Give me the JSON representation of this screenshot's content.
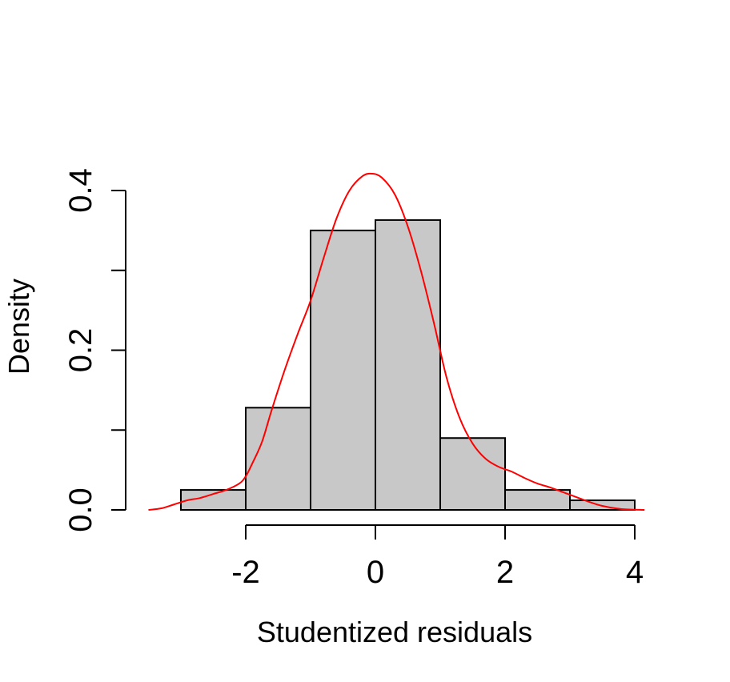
{
  "chart_data": {
    "type": "bar",
    "subtype": "histogram",
    "title": "",
    "xlabel": "Studentized residuals",
    "ylabel": "Density",
    "bins": [
      {
        "x0": -3,
        "x1": -2,
        "density": 0.025
      },
      {
        "x0": -2,
        "x1": -1,
        "density": 0.128
      },
      {
        "x0": -1,
        "x1": 0,
        "density": 0.35
      },
      {
        "x0": 0,
        "x1": 1,
        "density": 0.363
      },
      {
        "x0": 1,
        "x1": 2,
        "density": 0.09
      },
      {
        "x0": 2,
        "x1": 3,
        "density": 0.025
      },
      {
        "x0": 3,
        "x1": 4,
        "density": 0.012
      }
    ],
    "x_ticks": [
      {
        "value": -2,
        "label": "-2"
      },
      {
        "value": 0,
        "label": "0"
      },
      {
        "value": 2,
        "label": "2"
      },
      {
        "value": 4,
        "label": "4"
      }
    ],
    "y_ticks": [
      {
        "value": 0.0,
        "label": "0.0"
      },
      {
        "value": 0.1,
        "label": ""
      },
      {
        "value": 0.2,
        "label": "0.2"
      },
      {
        "value": 0.3,
        "label": ""
      },
      {
        "value": 0.4,
        "label": "0.4"
      }
    ],
    "xlim": [
      -2,
      4
    ],
    "ylim": [
      0,
      0.4
    ],
    "bar_fill": "#c8c8c8",
    "bar_stroke": "#000000",
    "density_curve": {
      "color": "#ff0000",
      "points": [
        [
          -3.5,
          0.0
        ],
        [
          -3.3,
          0.002
        ],
        [
          -3.1,
          0.007
        ],
        [
          -2.9,
          0.012
        ],
        [
          -2.7,
          0.015
        ],
        [
          -2.5,
          0.02
        ],
        [
          -2.3,
          0.025
        ],
        [
          -2.1,
          0.033
        ],
        [
          -2.0,
          0.042
        ],
        [
          -1.9,
          0.058
        ],
        [
          -1.75,
          0.085
        ],
        [
          -1.6,
          0.125
        ],
        [
          -1.4,
          0.175
        ],
        [
          -1.2,
          0.22
        ],
        [
          -1.0,
          0.262
        ],
        [
          -0.8,
          0.315
        ],
        [
          -0.6,
          0.365
        ],
        [
          -0.4,
          0.4
        ],
        [
          -0.2,
          0.418
        ],
        [
          -0.05,
          0.421
        ],
        [
          0.1,
          0.416
        ],
        [
          0.3,
          0.395
        ],
        [
          0.5,
          0.355
        ],
        [
          0.7,
          0.3
        ],
        [
          0.9,
          0.235
        ],
        [
          1.1,
          0.165
        ],
        [
          1.3,
          0.115
        ],
        [
          1.5,
          0.083
        ],
        [
          1.7,
          0.064
        ],
        [
          1.9,
          0.054
        ],
        [
          2.1,
          0.048
        ],
        [
          2.3,
          0.04
        ],
        [
          2.5,
          0.033
        ],
        [
          2.7,
          0.028
        ],
        [
          2.9,
          0.022
        ],
        [
          3.1,
          0.016
        ],
        [
          3.3,
          0.01
        ],
        [
          3.5,
          0.005
        ],
        [
          3.8,
          0.001
        ],
        [
          4.15,
          0.0
        ]
      ]
    }
  }
}
